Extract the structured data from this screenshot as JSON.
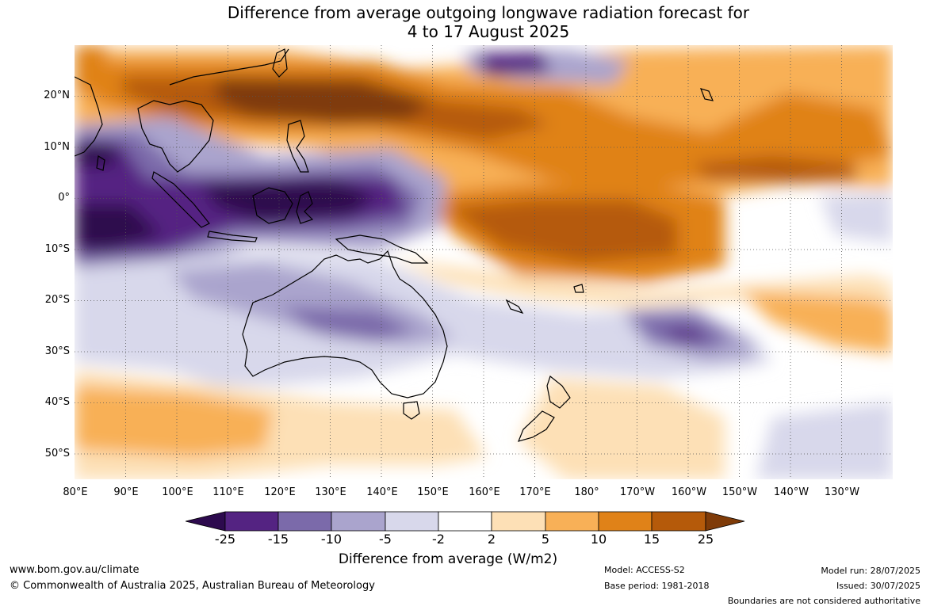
{
  "title": {
    "line1": "Difference from average outgoing longwave radiation forecast for",
    "line2": "4 to 17 August 2025"
  },
  "map": {
    "lat_labels": [
      "20°N",
      "10°N",
      "0°",
      "10°S",
      "20°S",
      "30°S",
      "40°S",
      "50°S"
    ],
    "lon_labels": [
      "80°E",
      "90°E",
      "100°E",
      "110°E",
      "120°E",
      "130°E",
      "140°E",
      "150°E",
      "160°E",
      "170°E",
      "180°",
      "170°W",
      "160°W",
      "150°W",
      "140°W",
      "130°W"
    ],
    "extent": {
      "lon_min": 80,
      "lon_max": 240,
      "lat_min": -55,
      "lat_max": 30
    }
  },
  "legend": {
    "ticks": [
      "-25",
      "-15",
      "-10",
      "-5",
      "-2",
      "2",
      "5",
      "10",
      "15",
      "25"
    ],
    "colors": {
      "below_-25": "#2d0a4e",
      "-25_-15": "#542382",
      "-15_-10": "#7b6aaa",
      "-10_-5": "#aaa4cd",
      "-5_-2": "#d8d8eb",
      "-2_2": "#ffffff",
      "2_5": "#fde0b6",
      "5_10": "#f8b057",
      "10_15": "#e08218",
      "15_25": "#b55a0a",
      "above_25": "#7f3b08"
    },
    "label": "Difference from average (W/m2)"
  },
  "footer": {
    "website": "www.bom.gov.au/climate",
    "copyright": "© Commonwealth of Australia 2025, Australian Bureau of Meteorology",
    "model": "Model: ACCESS-S2",
    "base_period": "Base period: 1981-2018",
    "model_run": "Model run: 28/07/2025",
    "issued": "Issued: 30/07/2025",
    "disclaimer": "Boundaries are not considered authoritative"
  }
}
